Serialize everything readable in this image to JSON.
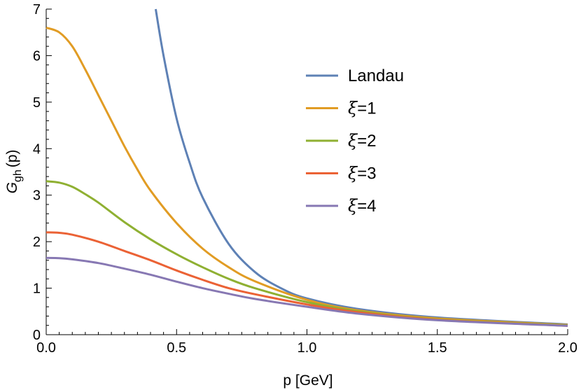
{
  "chart_data": {
    "type": "line",
    "xlabel": "p [GeV]",
    "ylabel": {
      "main": "G",
      "sub": "gh",
      "tail": "(p)"
    },
    "xlim": [
      0,
      2.0
    ],
    "ylim": [
      0,
      7
    ],
    "x_ticks": [
      "0.0",
      "0.5",
      "1.0",
      "1.5",
      "2.0"
    ],
    "y_ticks": [
      "0",
      "1",
      "2",
      "3",
      "4",
      "5",
      "6",
      "7"
    ],
    "grid": false,
    "legend_position": "top-right",
    "series": [
      {
        "name": "Landau",
        "name_parts": [
          "Landau"
        ],
        "color": "#5e81b5",
        "x": [
          0.42,
          0.45,
          0.5,
          0.55,
          0.6,
          0.7,
          0.8,
          0.9,
          1.0,
          1.2,
          1.5,
          2.0
        ],
        "y": [
          7.0,
          6.0,
          4.65,
          3.7,
          2.95,
          1.95,
          1.35,
          1.0,
          0.78,
          0.55,
          0.37,
          0.22
        ]
      },
      {
        "name": "ξ=1",
        "name_parts": [
          "ξ",
          "=1"
        ],
        "color": "#e19c24",
        "x": [
          0.0,
          0.05,
          0.1,
          0.15,
          0.2,
          0.25,
          0.3,
          0.35,
          0.4,
          0.5,
          0.6,
          0.7,
          0.8,
          1.0,
          1.2,
          1.5,
          2.0
        ],
        "y": [
          6.6,
          6.5,
          6.2,
          5.7,
          5.15,
          4.6,
          4.05,
          3.55,
          3.1,
          2.4,
          1.85,
          1.45,
          1.15,
          0.75,
          0.52,
          0.35,
          0.21
        ]
      },
      {
        "name": "ξ=2",
        "name_parts": [
          "ξ",
          "=2"
        ],
        "color": "#8fb032",
        "x": [
          0.0,
          0.05,
          0.1,
          0.15,
          0.2,
          0.3,
          0.4,
          0.5,
          0.6,
          0.7,
          0.8,
          1.0,
          1.2,
          1.5,
          2.0
        ],
        "y": [
          3.3,
          3.27,
          3.18,
          3.02,
          2.84,
          2.42,
          2.05,
          1.73,
          1.45,
          1.2,
          1.0,
          0.7,
          0.5,
          0.33,
          0.2
        ]
      },
      {
        "name": "ξ=3",
        "name_parts": [
          "ξ",
          "=3"
        ],
        "color": "#eb6235",
        "x": [
          0.0,
          0.05,
          0.1,
          0.2,
          0.3,
          0.4,
          0.5,
          0.6,
          0.7,
          0.8,
          1.0,
          1.2,
          1.5,
          2.0
        ],
        "y": [
          2.2,
          2.19,
          2.15,
          2.0,
          1.8,
          1.6,
          1.38,
          1.18,
          1.0,
          0.87,
          0.65,
          0.48,
          0.32,
          0.19
        ]
      },
      {
        "name": "ξ=4",
        "name_parts": [
          "ξ",
          "=4"
        ],
        "color": "#8778b3",
        "x": [
          0.0,
          0.05,
          0.1,
          0.2,
          0.3,
          0.4,
          0.5,
          0.6,
          0.7,
          0.8,
          1.0,
          1.2,
          1.5,
          2.0
        ],
        "y": [
          1.65,
          1.645,
          1.62,
          1.54,
          1.42,
          1.29,
          1.14,
          1.0,
          0.88,
          0.77,
          0.6,
          0.45,
          0.31,
          0.19
        ]
      }
    ]
  }
}
